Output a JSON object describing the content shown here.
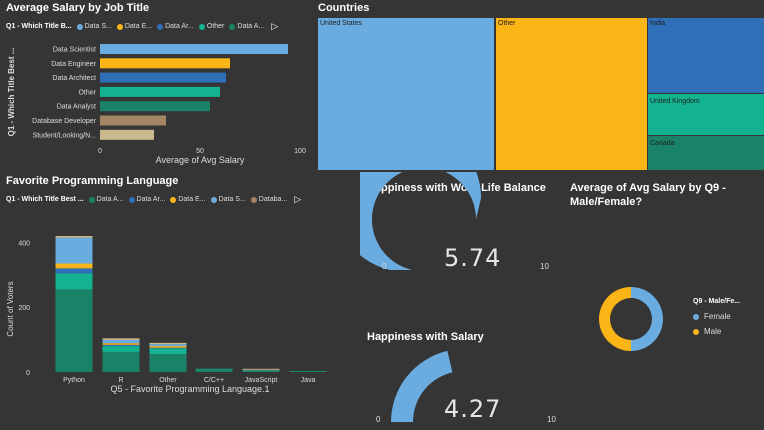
{
  "colors": {
    "background": "#353535",
    "data_scientist": "#6aace0",
    "data_engineer": "#fbb516",
    "data_architect": "#2e6fb7",
    "other": "#13b290",
    "data_analyst": "#198267",
    "database_developer": "#a48462",
    "student": "#cab98c",
    "female": "#6aace0",
    "male": "#fbb516",
    "gauge_fill": "#6aace0"
  },
  "salary_panel": {
    "title": "Average Salary by Job Title",
    "legend_title": "Q1 - Which Title B...",
    "legend_items": [
      "Data S...",
      "Data E...",
      "Data Ar...",
      "Other",
      "Data A..."
    ]
  },
  "countries_panel": {
    "title": "Countries",
    "tiles": [
      "United States",
      "Other",
      "India",
      "United Kingdom",
      "Canada"
    ]
  },
  "language_panel": {
    "title": "Favorite Programming Language",
    "legend_title": "Q1 - Which Title Best ...",
    "legend_items": [
      "Data A...",
      "Data Ar...",
      "Data E...",
      "Data S...",
      "Databa..."
    ]
  },
  "wlb_gauge": {
    "title": "Happiness with Work Life Balance",
    "value": 5.74,
    "value_text": "5.74",
    "min": "0",
    "max": "10"
  },
  "salary_gauge": {
    "title": "Happiness with Salary",
    "value": 4.27,
    "value_text": "4.27",
    "min": "0",
    "max": "10"
  },
  "gender_panel": {
    "title_line1": "Average of Avg Salary by Q9 -",
    "title_line2": "Male/Female?",
    "legend_title": "Q9 - Male/Fe...",
    "legend_items": [
      "Female",
      "Male"
    ]
  },
  "chart_data": [
    {
      "type": "bar",
      "orientation": "horizontal",
      "title": "Average Salary by Job Title",
      "xlabel": "Average of Avg Salary",
      "ylabel": "Q1 - Which Title Best ...",
      "categories": [
        "Data Scientist",
        "Data Engineer",
        "Data Architect",
        "Other",
        "Data Analyst",
        "Database Developer",
        "Student/Looking/N..."
      ],
      "values": [
        94,
        65,
        63,
        60,
        55,
        33,
        27
      ],
      "xlim": [
        0,
        100
      ],
      "xticks": [
        "0",
        "50",
        "100"
      ]
    },
    {
      "type": "treemap",
      "title": "Countries",
      "categories": [
        "United States",
        "Other",
        "India",
        "United Kingdom",
        "Canada"
      ],
      "values": [
        230,
        190,
        100,
        55,
        42
      ]
    },
    {
      "type": "bar",
      "stacked": true,
      "title": "Favorite Programming Language",
      "xlabel": "Q5 - Favorite Programming Language.1",
      "ylabel": "Count of Voters",
      "categories": [
        "Python",
        "R",
        "Other",
        "C/C++",
        "JavaScript",
        "Java"
      ],
      "series": [
        {
          "name": "Data Analyst",
          "values": [
            255,
            62,
            55,
            8,
            4,
            2
          ]
        },
        {
          "name": "Other",
          "values": [
            50,
            18,
            18,
            2,
            1,
            1
          ]
        },
        {
          "name": "Data Architect",
          "values": [
            15,
            4,
            2,
            0,
            0,
            0
          ]
        },
        {
          "name": "Data Engineer",
          "values": [
            15,
            5,
            5,
            0,
            0,
            0
          ]
        },
        {
          "name": "Data Scientist",
          "values": [
            80,
            10,
            6,
            0,
            1,
            0
          ]
        },
        {
          "name": "Database Developer",
          "values": [
            0,
            0,
            0,
            0,
            2,
            0
          ]
        },
        {
          "name": "Student/Looking/N...",
          "values": [
            5,
            5,
            4,
            0,
            2,
            0
          ]
        }
      ],
      "ylim": [
        0,
        420
      ],
      "yticks": [
        "0",
        "200",
        "400"
      ]
    },
    {
      "type": "gauge",
      "title": "Happiness with Work Life Balance",
      "value": 5.74,
      "min": 0,
      "max": 10
    },
    {
      "type": "gauge",
      "title": "Happiness with Salary",
      "value": 4.27,
      "min": 0,
      "max": 10
    },
    {
      "type": "donut",
      "title": "Average of Avg Salary by Q9 - Male/Female?",
      "categories": [
        "Female",
        "Male"
      ],
      "values": [
        50,
        50
      ]
    }
  ]
}
